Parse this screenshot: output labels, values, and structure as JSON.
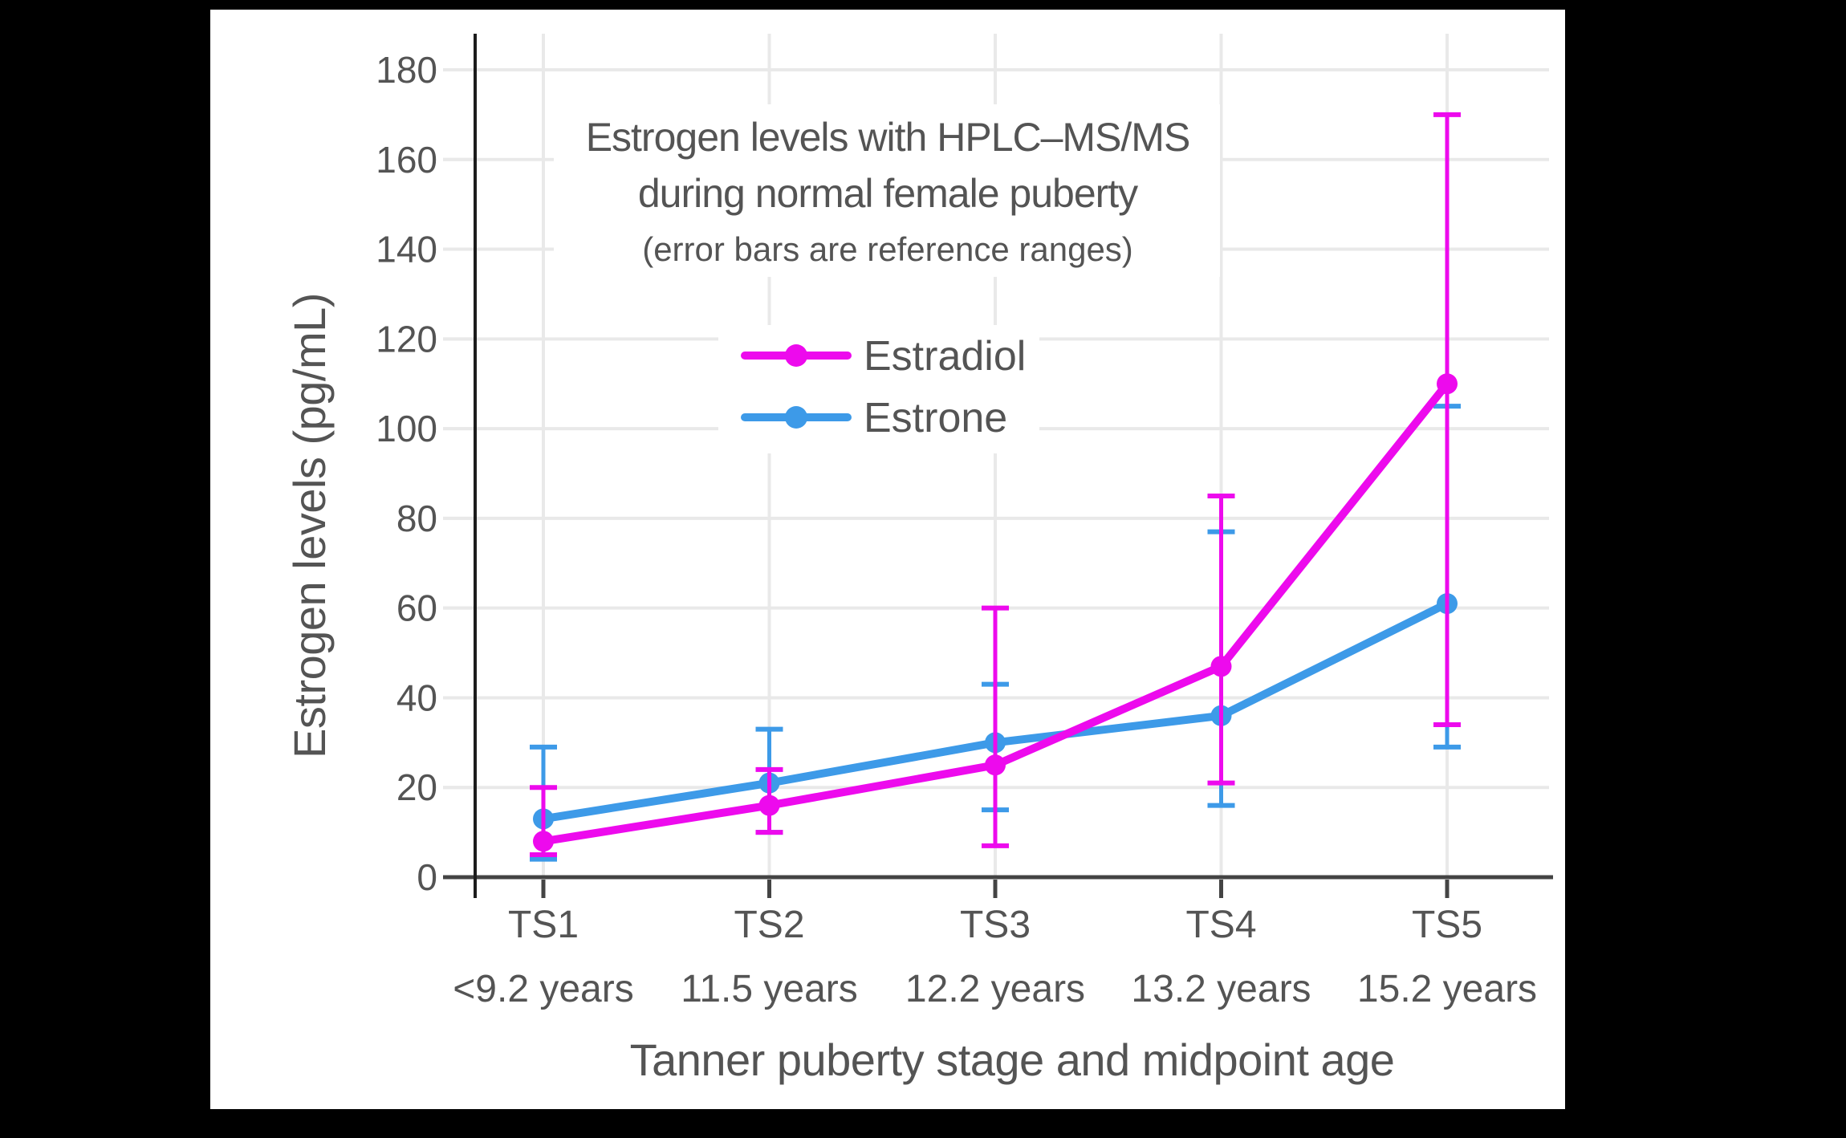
{
  "figure": {
    "background": "#000000",
    "panel_background": "#FFFFFF",
    "text_color": "#545454",
    "gridline_color": "#E9E9E9",
    "axis_color": "#444444"
  },
  "chart_data": {
    "type": "line",
    "title_line1": "Estrogen levels with HPLC–MS/MS",
    "title_line2": "during normal female puberty",
    "subtitle": "(error bars are reference ranges)",
    "xlabel": "Tanner puberty stage and midpoint age",
    "ylabel": "Estrogen levels (pg/mL)",
    "categories": [
      "TS1",
      "TS2",
      "TS3",
      "TS4",
      "TS5"
    ],
    "category_ages": [
      "<9.2 years",
      "11.5 years",
      "12.2 years",
      "13.2 years",
      "15.2 years"
    ],
    "yticks": [
      0,
      20,
      40,
      60,
      80,
      100,
      120,
      140,
      160,
      180
    ],
    "ylim": [
      0,
      188
    ],
    "grid": true,
    "legend_position": "inside-upper-center",
    "error_bars_meaning": "reference ranges",
    "series": [
      {
        "name": "Estradiol",
        "color": "#ED0AED",
        "values": [
          8,
          16,
          25,
          47,
          110
        ],
        "err_low": [
          5,
          10,
          7,
          21,
          34
        ],
        "err_high": [
          20,
          24,
          60,
          85,
          170
        ]
      },
      {
        "name": "Estrone",
        "color": "#3D9AE8",
        "values": [
          13,
          21,
          30,
          36,
          61
        ],
        "err_low": [
          4,
          10,
          15,
          16,
          29
        ],
        "err_high": [
          29,
          33,
          43,
          77,
          105
        ]
      }
    ]
  }
}
